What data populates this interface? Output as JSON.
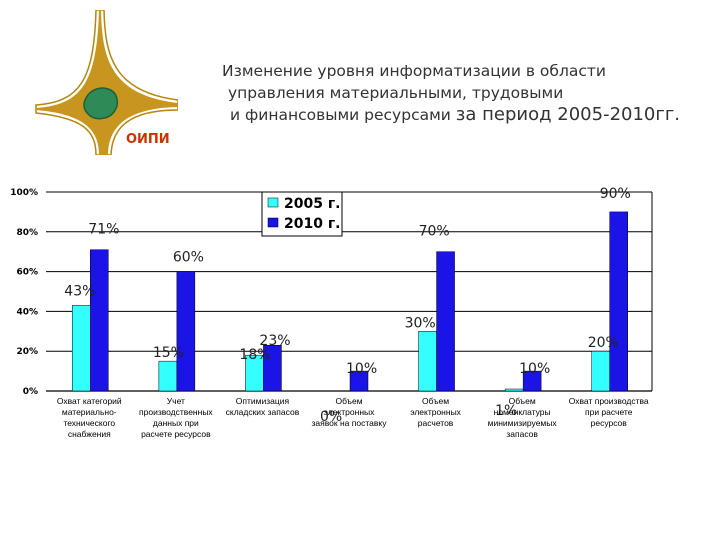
{
  "logo": {
    "caption": "ОИПИ"
  },
  "header": {
    "title_line1": "Изменение уровня информатизации в области",
    "title_line2": "управления материальными, трудовыми",
    "title_line3a": "и финансовыми ресурсами ",
    "title_line3b": "за период 2005-2010гг."
  },
  "colors": {
    "series_2005": "#33FFFF",
    "series_2010": "#1A14E6",
    "grid": "#000000"
  },
  "chart_data": {
    "type": "bar",
    "ylim": [
      0,
      100
    ],
    "yticks": [
      0,
      20,
      40,
      60,
      80,
      100
    ],
    "ytick_labels": [
      "0%",
      "20%",
      "40%",
      "60%",
      "80%",
      "100%"
    ],
    "grid": true,
    "legend": "top-center",
    "categories": [
      [
        "Охват категорий",
        "материально-",
        "технического",
        "снабжения"
      ],
      [
        "Учет",
        "производственных",
        "данных при",
        "расчете ресурсов"
      ],
      [
        "Оптимизация",
        "складских запасов"
      ],
      [
        "Объем",
        "электронных",
        "заявок на поставку"
      ],
      [
        "Объем",
        "электронных",
        "расчетов"
      ],
      [
        "Объем",
        "номенклатуры",
        "минимизируемых",
        "запасов"
      ],
      [
        "Охват производства",
        "при расчете",
        "ресурсов"
      ]
    ],
    "series": [
      {
        "name": "2005 г.",
        "values": [
          43,
          15,
          18,
          0,
          30,
          1,
          20
        ],
        "labels": [
          "43%",
          "15%",
          "18%",
          "0%",
          "30%",
          "1%",
          "20%"
        ]
      },
      {
        "name": "2010 г.",
        "values": [
          71,
          60,
          23,
          10,
          70,
          10,
          90
        ],
        "labels": [
          "71%",
          "60%",
          "23%",
          "10%",
          "70%",
          "10%",
          "90%"
        ]
      }
    ]
  }
}
